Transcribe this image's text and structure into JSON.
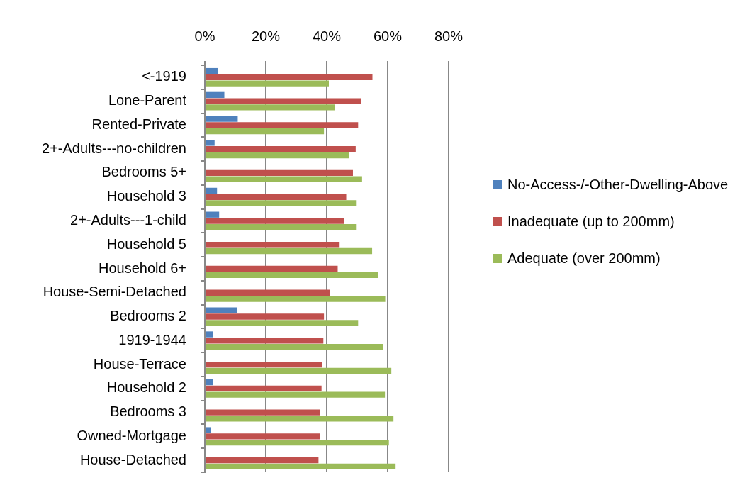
{
  "chart_data": {
    "type": "bar",
    "orientation": "horizontal",
    "categories": [
      "<-1919",
      "Lone-Parent",
      "Rented-Private",
      "2+-Adults---no-children",
      "Bedrooms 5+",
      "Household 3",
      "2+-Adults---1-child",
      "Household 5",
      "Household 6+",
      "House-Semi-Detached",
      "Bedrooms 2",
      "1919-1944",
      "House-Terrace",
      "Household 2",
      "Bedrooms 3",
      "Owned-Mortgage",
      "House-Detached"
    ],
    "series": [
      {
        "name": "No-Access-/-Other-Dwelling-Above",
        "color": "#4f81bd",
        "values": [
          4.4,
          6.4,
          10.8,
          3.2,
          0,
          4.0,
          4.7,
          0,
          0,
          0,
          10.6,
          2.6,
          0,
          2.6,
          0,
          1.9,
          0
        ]
      },
      {
        "name": "Inadequate (up to 200mm)",
        "color": "#c0504d",
        "values": [
          55.0,
          51.2,
          50.3,
          49.5,
          48.6,
          46.4,
          45.7,
          44.0,
          43.6,
          41.0,
          39.1,
          38.9,
          38.6,
          38.3,
          37.9,
          37.9,
          37.3
        ]
      },
      {
        "name": "Adequate (over 200mm)",
        "color": "#9bbb59",
        "values": [
          40.7,
          42.6,
          39.1,
          47.3,
          51.6,
          49.6,
          49.6,
          54.9,
          56.8,
          59.2,
          50.3,
          58.4,
          61.2,
          59.1,
          61.9,
          60.4,
          62.6
        ]
      }
    ],
    "xlim": [
      0,
      80
    ],
    "xticks": [
      {
        "value": 0,
        "label": "0%"
      },
      {
        "value": 20,
        "label": "20%"
      },
      {
        "value": 40,
        "label": "40%"
      },
      {
        "value": 60,
        "label": "60%"
      },
      {
        "value": 80,
        "label": "80%"
      }
    ],
    "grid": "x",
    "legend": "right"
  }
}
